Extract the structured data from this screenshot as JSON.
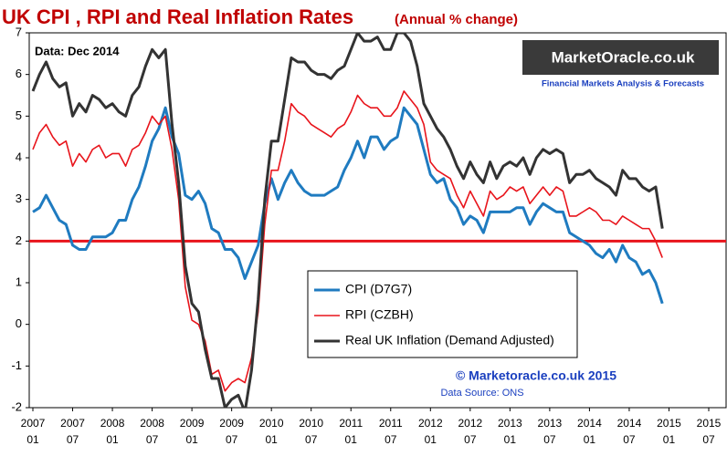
{
  "chart_data": {
    "type": "line",
    "title": "UK CPI , RPI and Real Inflation Rates",
    "subtitle": "(Annual % change)",
    "annotations": {
      "data_date": "Data:  Dec 2014",
      "logo": "MarketOracle.co.uk",
      "logo_tagline": "Financial Markets Analysis & Forecasts",
      "copyright": "© Marketoracle.co.uk 2015",
      "source": "Data Source: ONS"
    },
    "x": [
      "2007-01",
      "2007-02",
      "2007-03",
      "2007-04",
      "2007-05",
      "2007-06",
      "2007-07",
      "2007-08",
      "2007-09",
      "2007-10",
      "2007-11",
      "2007-12",
      "2008-01",
      "2008-02",
      "2008-03",
      "2008-04",
      "2008-05",
      "2008-06",
      "2008-07",
      "2008-08",
      "2008-09",
      "2008-10",
      "2008-11",
      "2008-12",
      "2009-01",
      "2009-02",
      "2009-03",
      "2009-04",
      "2009-05",
      "2009-06",
      "2009-07",
      "2009-08",
      "2009-09",
      "2009-10",
      "2009-11",
      "2009-12",
      "2010-01",
      "2010-02",
      "2010-03",
      "2010-04",
      "2010-05",
      "2010-06",
      "2010-07",
      "2010-08",
      "2010-09",
      "2010-10",
      "2010-11",
      "2010-12",
      "2011-01",
      "2011-02",
      "2011-03",
      "2011-04",
      "2011-05",
      "2011-06",
      "2011-07",
      "2011-08",
      "2011-09",
      "2011-10",
      "2011-11",
      "2011-12",
      "2012-01",
      "2012-02",
      "2012-03",
      "2012-04",
      "2012-05",
      "2012-06",
      "2012-07",
      "2012-08",
      "2012-09",
      "2012-10",
      "2012-11",
      "2012-12",
      "2013-01",
      "2013-02",
      "2013-03",
      "2013-04",
      "2013-05",
      "2013-06",
      "2013-07",
      "2013-08",
      "2013-09",
      "2013-10",
      "2013-11",
      "2013-12",
      "2014-01",
      "2014-02",
      "2014-03",
      "2014-04",
      "2014-05",
      "2014-06",
      "2014-07",
      "2014-08",
      "2014-09",
      "2014-10",
      "2014-11",
      "2014-12"
    ],
    "series": [
      {
        "name": "CPI (D7G7)",
        "color": "#1f7bc0",
        "values": [
          2.7,
          2.8,
          3.1,
          2.8,
          2.5,
          2.4,
          1.9,
          1.8,
          1.8,
          2.1,
          2.1,
          2.1,
          2.2,
          2.5,
          2.5,
          3.0,
          3.3,
          3.8,
          4.4,
          4.7,
          5.2,
          4.5,
          4.1,
          3.1,
          3.0,
          3.2,
          2.9,
          2.3,
          2.2,
          1.8,
          1.8,
          1.6,
          1.1,
          1.5,
          1.9,
          2.9,
          3.5,
          3.0,
          3.4,
          3.7,
          3.4,
          3.2,
          3.1,
          3.1,
          3.1,
          3.2,
          3.3,
          3.7,
          4.0,
          4.4,
          4.0,
          4.5,
          4.5,
          4.2,
          4.4,
          4.5,
          5.2,
          5.0,
          4.8,
          4.2,
          3.6,
          3.4,
          3.5,
          3.0,
          2.8,
          2.4,
          2.6,
          2.5,
          2.2,
          2.7,
          2.7,
          2.7,
          2.7,
          2.8,
          2.8,
          2.4,
          2.7,
          2.9,
          2.8,
          2.7,
          2.7,
          2.2,
          2.1,
          2.0,
          1.9,
          1.7,
          1.6,
          1.8,
          1.5,
          1.9,
          1.6,
          1.5,
          1.2,
          1.3,
          1.0,
          0.5
        ]
      },
      {
        "name": "RPI (CZBH)",
        "color": "#e8141b",
        "values": [
          4.2,
          4.6,
          4.8,
          4.5,
          4.3,
          4.4,
          3.8,
          4.1,
          3.9,
          4.2,
          4.3,
          4.0,
          4.1,
          4.1,
          3.8,
          4.2,
          4.3,
          4.6,
          5.0,
          4.8,
          5.0,
          4.2,
          3.0,
          0.9,
          0.1,
          0.0,
          -0.4,
          -1.2,
          -1.1,
          -1.6,
          -1.4,
          -1.3,
          -1.4,
          -0.8,
          0.3,
          2.4,
          3.7,
          3.7,
          4.4,
          5.3,
          5.1,
          5.0,
          4.8,
          4.7,
          4.6,
          4.5,
          4.7,
          4.8,
          5.1,
          5.5,
          5.3,
          5.2,
          5.2,
          5.0,
          5.0,
          5.2,
          5.6,
          5.4,
          5.2,
          4.8,
          3.9,
          3.7,
          3.6,
          3.5,
          3.1,
          2.8,
          3.2,
          2.9,
          2.6,
          3.2,
          3.0,
          3.1,
          3.3,
          3.2,
          3.3,
          2.9,
          3.1,
          3.3,
          3.1,
          3.3,
          3.2,
          2.6,
          2.6,
          2.7,
          2.8,
          2.7,
          2.5,
          2.5,
          2.4,
          2.6,
          2.5,
          2.4,
          2.3,
          2.3,
          2.0,
          1.6
        ]
      },
      {
        "name": "Real UK Inflation (Demand Adjusted)",
        "color": "#333333",
        "values": [
          5.6,
          6.0,
          6.3,
          5.9,
          5.7,
          5.8,
          5.0,
          5.3,
          5.1,
          5.5,
          5.4,
          5.2,
          5.3,
          5.1,
          5.0,
          5.5,
          5.7,
          6.2,
          6.6,
          6.4,
          6.6,
          4.8,
          3.4,
          1.4,
          0.5,
          0.3,
          -0.6,
          -1.3,
          -1.3,
          -2.0,
          -1.8,
          -1.7,
          -2.1,
          -1.1,
          0.6,
          3.0,
          4.4,
          4.4,
          5.4,
          6.4,
          6.3,
          6.3,
          6.1,
          6.0,
          6.0,
          5.9,
          6.1,
          6.2,
          6.6,
          7.0,
          6.8,
          6.8,
          6.9,
          6.6,
          6.6,
          7.0,
          7.0,
          6.8,
          6.2,
          5.3,
          5.0,
          4.7,
          4.5,
          4.2,
          3.8,
          3.5,
          3.9,
          3.6,
          3.4,
          3.9,
          3.5,
          3.8,
          3.9,
          3.8,
          4.0,
          3.6,
          4.0,
          4.2,
          4.1,
          4.2,
          4.1,
          3.4,
          3.6,
          3.6,
          3.7,
          3.5,
          3.4,
          3.3,
          3.1,
          3.7,
          3.5,
          3.5,
          3.3,
          3.2,
          3.3,
          2.3
        ]
      }
    ],
    "reference_line": {
      "value": 2,
      "color": "#e8141b"
    },
    "xlim": [
      "2007-01",
      "2015-07"
    ],
    "xticks": [
      {
        "value": "2007-01",
        "label": [
          "2007",
          "01"
        ]
      },
      {
        "value": "2007-07",
        "label": [
          "2007",
          "07"
        ]
      },
      {
        "value": "2008-01",
        "label": [
          "2008",
          "01"
        ]
      },
      {
        "value": "2008-07",
        "label": [
          "2008",
          "07"
        ]
      },
      {
        "value": "2009-01",
        "label": [
          "2009",
          "01"
        ]
      },
      {
        "value": "2009-07",
        "label": [
          "2009",
          "07"
        ]
      },
      {
        "value": "2010-01",
        "label": [
          "2010",
          "01"
        ]
      },
      {
        "value": "2010-07",
        "label": [
          "2010",
          "07"
        ]
      },
      {
        "value": "2011-01",
        "label": [
          "2011",
          "01"
        ]
      },
      {
        "value": "2011-07",
        "label": [
          "2011",
          "07"
        ]
      },
      {
        "value": "2012-01",
        "label": [
          "2012",
          "01"
        ]
      },
      {
        "value": "2012-07",
        "label": [
          "2012",
          "07"
        ]
      },
      {
        "value": "2013-01",
        "label": [
          "2013",
          "01"
        ]
      },
      {
        "value": "2013-07",
        "label": [
          "2013",
          "07"
        ]
      },
      {
        "value": "2014-01",
        "label": [
          "2014",
          "01"
        ]
      },
      {
        "value": "2014-07",
        "label": [
          "2014",
          "07"
        ]
      },
      {
        "value": "2015-01",
        "label": [
          "2015",
          "01"
        ]
      },
      {
        "value": "2015-07",
        "label": [
          "2015",
          "07"
        ]
      }
    ],
    "ylim": [
      -2,
      7
    ],
    "yticks": [
      -2,
      -1,
      0,
      1,
      2,
      3,
      4,
      5,
      6,
      7
    ],
    "grid": false
  }
}
